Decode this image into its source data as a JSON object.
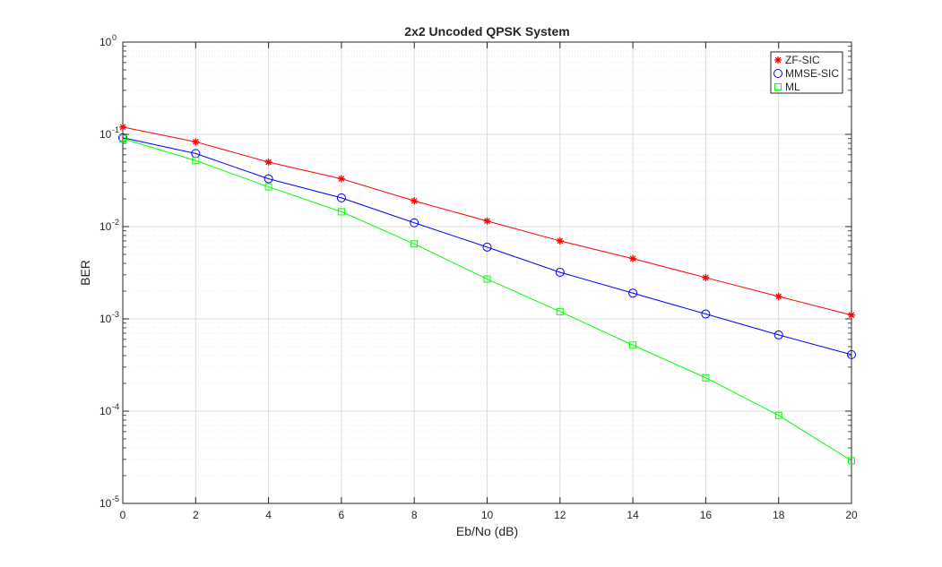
{
  "chart_data": {
    "type": "line",
    "title": "2x2 Uncoded QPSK System",
    "xlabel": "Eb/No (dB)",
    "ylabel": "BER",
    "xlim": [
      0,
      20
    ],
    "ylim": [
      1e-05,
      1
    ],
    "yscale": "log",
    "grid": true,
    "minor_grid": true,
    "legend_position": "top-right",
    "x": [
      0,
      2,
      4,
      6,
      8,
      10,
      12,
      14,
      16,
      18,
      20
    ],
    "x_ticks": [
      "0",
      "2",
      "4",
      "6",
      "8",
      "10",
      "12",
      "14",
      "16",
      "18",
      "20"
    ],
    "y_ticks": [
      {
        "base": "10",
        "exp": "0"
      },
      {
        "base": "10",
        "exp": "-1"
      },
      {
        "base": "10",
        "exp": "-2"
      },
      {
        "base": "10",
        "exp": "-3"
      },
      {
        "base": "10",
        "exp": "-4"
      },
      {
        "base": "10",
        "exp": "-5"
      }
    ],
    "series": [
      {
        "name": "ZF-SIC",
        "color": "#ff0000",
        "marker": "asterisk",
        "values": [
          0.12,
          0.083,
          0.05,
          0.033,
          0.019,
          0.0115,
          0.007,
          0.0045,
          0.0028,
          0.00175,
          0.0011
        ]
      },
      {
        "name": "MMSE-SIC",
        "color": "#0000ff",
        "marker": "circle",
        "values": [
          0.092,
          0.062,
          0.033,
          0.0205,
          0.011,
          0.006,
          0.0032,
          0.0019,
          0.00113,
          0.00067,
          0.00041
        ]
      },
      {
        "name": "ML",
        "color": "#00ff00",
        "marker": "square",
        "values": [
          0.09,
          0.052,
          0.027,
          0.0145,
          0.0065,
          0.0027,
          0.0012,
          0.00052,
          0.00023,
          9e-05,
          2.9e-05
        ]
      }
    ]
  }
}
